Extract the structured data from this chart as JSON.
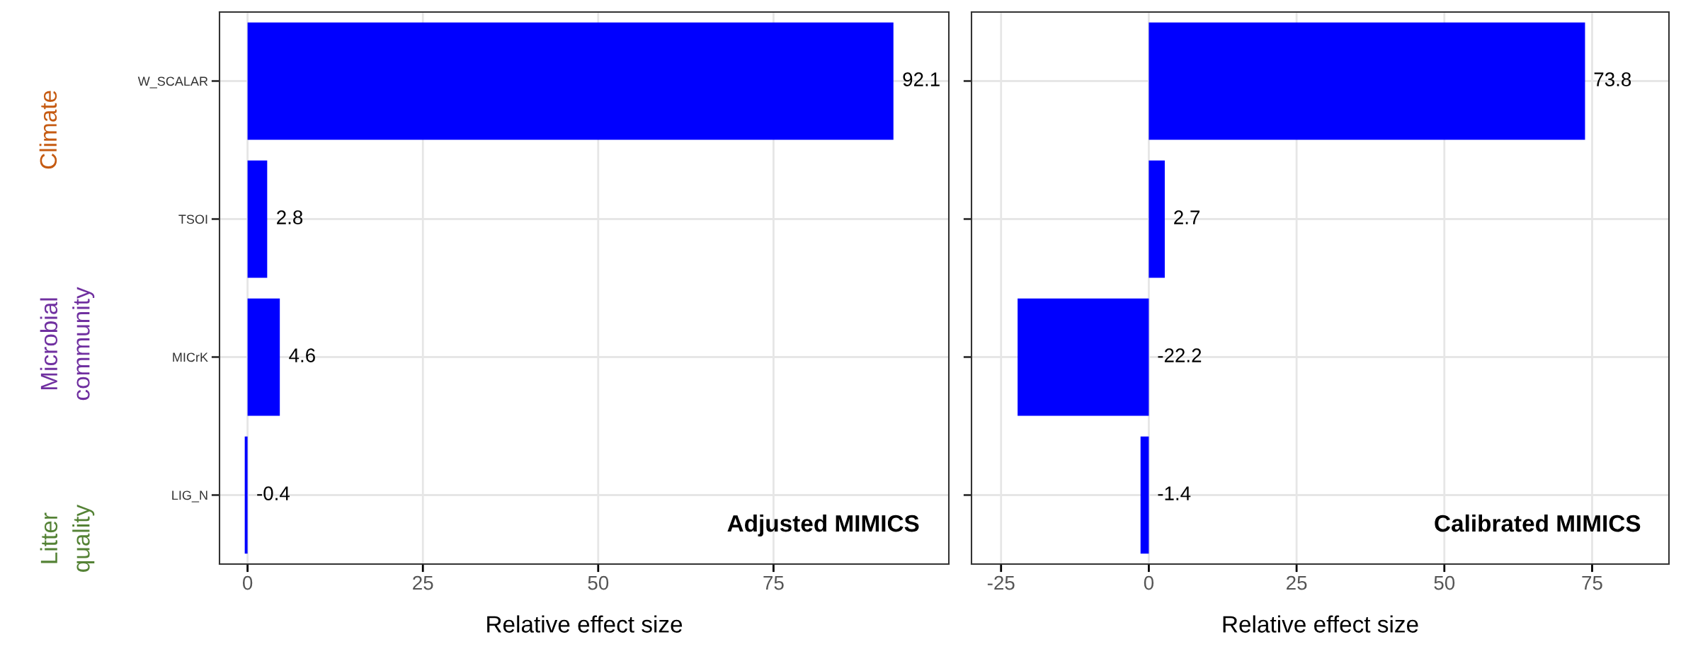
{
  "chart_data": [
    {
      "type": "bar",
      "orientation": "horizontal",
      "categories": [
        "W_SCALAR",
        "TSOI",
        "MICrK",
        "LIG_N"
      ],
      "series": [
        {
          "color": "#0000ff",
          "values": [
            92.1,
            2.8,
            4.6,
            -0.4
          ]
        }
      ],
      "data_labels": true,
      "xlabel": "Relative effect size",
      "xlim": [
        -4,
        100
      ],
      "xticks": [
        0,
        25,
        50,
        75
      ],
      "grid": true,
      "annotations": [
        "Climate",
        "Microbial\ncommunity",
        "Litter\nquality",
        "Adjusted MIMICS"
      ]
    },
    {
      "type": "bar",
      "orientation": "horizontal",
      "categories": [
        null,
        null,
        null,
        null
      ],
      "series": [
        {
          "color": "#0000ff",
          "values": [
            73.8,
            2.7,
            -22.2,
            -1.4
          ]
        }
      ],
      "data_labels": true,
      "xlabel": "Relative effect size",
      "xlim": [
        -30,
        88
      ],
      "xticks": [
        -25,
        0,
        25,
        50,
        75
      ],
      "grid": true,
      "tick_labels": "x",
      "annotations": [
        "Calibrated MIMICS"
      ]
    }
  ]
}
